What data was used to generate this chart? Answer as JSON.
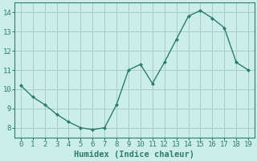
{
  "x": [
    0,
    1,
    2,
    3,
    4,
    5,
    6,
    7,
    8,
    9,
    10,
    11,
    12,
    13,
    14,
    15,
    16,
    17,
    18,
    19
  ],
  "y": [
    10.2,
    9.6,
    9.2,
    8.7,
    8.3,
    8.0,
    7.9,
    8.0,
    9.2,
    11.0,
    11.3,
    10.3,
    11.4,
    12.6,
    13.8,
    14.1,
    13.7,
    13.2,
    11.4,
    11.0
  ],
  "line_color": "#2d7d6f",
  "marker": "D",
  "marker_size": 2.0,
  "bg_color": "#cceee8",
  "grid_color": "#aaccc6",
  "xlabel": "Humidex (Indice chaleur)",
  "xlabel_fontsize": 7.5,
  "ylim": [
    7.5,
    14.5
  ],
  "xlim": [
    -0.5,
    19.5
  ],
  "yticks": [
    8,
    9,
    10,
    11,
    12,
    13,
    14
  ],
  "xticks": [
    0,
    1,
    2,
    3,
    4,
    5,
    6,
    7,
    8,
    9,
    10,
    11,
    12,
    13,
    14,
    15,
    16,
    17,
    18,
    19
  ],
  "tick_fontsize": 6.5,
  "line_width": 1.0
}
